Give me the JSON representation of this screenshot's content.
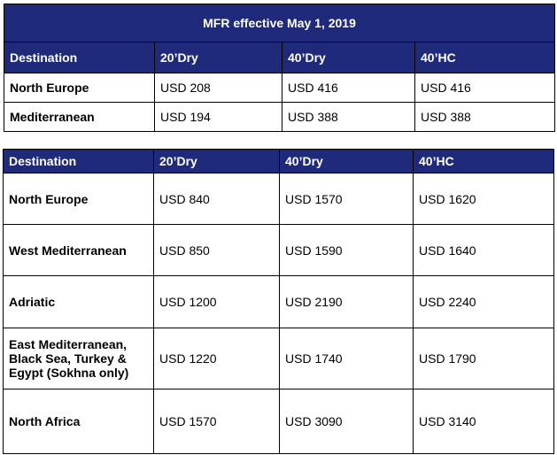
{
  "table1": {
    "title": "MFR effective May 1, 2019",
    "headers": [
      "Destination",
      "20’Dry",
      "40’Dry",
      "40’HC"
    ],
    "rows": [
      [
        "North Europe",
        "USD 208",
        "USD 416",
        "USD 416"
      ],
      [
        "Mediterranean",
        "USD 194",
        "USD 388",
        "USD 388"
      ]
    ]
  },
  "table2": {
    "headers": [
      "Destination",
      "20’Dry",
      "40’Dry",
      "40’HC"
    ],
    "rows": [
      [
        "North Europe",
        "USD 840",
        "USD 1570",
        "USD 1620"
      ],
      [
        "West Mediterranean",
        "USD 850",
        "USD 1590",
        "USD 1640"
      ],
      [
        "Adriatic",
        "USD 1200",
        "USD 2190",
        "USD 2240"
      ],
      [
        "East Mediterranean, Black Sea, Turkey & Egypt (Sokhna only)",
        "USD 1220",
        "USD 1740",
        "USD 1790"
      ],
      [
        "North Africa",
        "USD 1570",
        "USD 3090",
        "USD 3140"
      ]
    ]
  },
  "colors": {
    "header_bg": "#1f2a7a",
    "header_text": "#ffffff"
  }
}
